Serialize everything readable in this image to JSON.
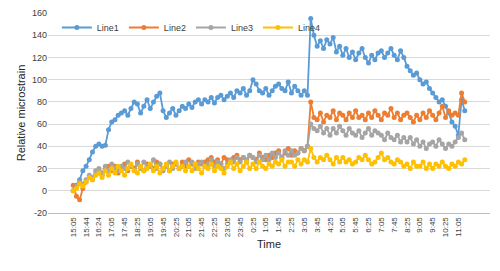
{
  "chart_data": {
    "type": "line",
    "x_label": "Time",
    "y_label": "Relative microstrain",
    "categories": [
      "15:05",
      null,
      null,
      null,
      "15:44",
      null,
      null,
      null,
      "16:24",
      null,
      null,
      null,
      "17:05",
      null,
      null,
      null,
      "17:45",
      null,
      null,
      null,
      "18:25",
      null,
      null,
      null,
      "19:05",
      null,
      null,
      null,
      "19:45",
      null,
      null,
      null,
      "20:25",
      null,
      null,
      null,
      "21:05",
      null,
      null,
      null,
      "21:45",
      null,
      null,
      null,
      "22:25",
      null,
      null,
      null,
      "23:05",
      null,
      null,
      null,
      "23:45",
      null,
      null,
      null,
      "0:25",
      null,
      null,
      null,
      "1:05",
      null,
      null,
      null,
      "1:45",
      null,
      null,
      null,
      "2:25",
      null,
      null,
      null,
      "3:05",
      null,
      null,
      null,
      "3:45",
      null,
      null,
      null,
      "4:25",
      null,
      null,
      null,
      "5:05",
      null,
      null,
      null,
      "5:45",
      null,
      null,
      null,
      "6:25",
      null,
      null,
      null,
      "7:05",
      null,
      null,
      null,
      "7:45",
      null,
      null,
      null,
      "8:25",
      null,
      null,
      null,
      "9:05",
      null,
      null,
      null,
      "9:45",
      null,
      null,
      null,
      "10:25",
      null,
      null,
      null,
      "11:05",
      null,
      null
    ],
    "series": [
      {
        "name": "Line1",
        "color": "#5B9BD5",
        "marker": "circle",
        "values": [
          0,
          5,
          10,
          18,
          22,
          28,
          35,
          40,
          42,
          40,
          41,
          55,
          62,
          64,
          68,
          70,
          72,
          68,
          74,
          80,
          78,
          70,
          76,
          82,
          74,
          80,
          85,
          88,
          72,
          66,
          70,
          74,
          68,
          72,
          76,
          74,
          78,
          75,
          80,
          82,
          78,
          82,
          80,
          84,
          79,
          84,
          86,
          82,
          85,
          88,
          84,
          90,
          88,
          92,
          86,
          90,
          100,
          96,
          90,
          88,
          92,
          86,
          90,
          94,
          96,
          92,
          90,
          98,
          88,
          94,
          90,
          86,
          90,
          86,
          155,
          140,
          130,
          135,
          128,
          136,
          132,
          138,
          125,
          130,
          122,
          128,
          120,
          125,
          118,
          124,
          128,
          120,
          115,
          122,
          118,
          124,
          126,
          120,
          124,
          128,
          122,
          118,
          126,
          120,
          112,
          108,
          104,
          106,
          100,
          96,
          98,
          92,
          88,
          84,
          80,
          82,
          76,
          70,
          62,
          58,
          50,
          82,
          72
        ]
      },
      {
        "name": "Line2",
        "color": "#ED7D31",
        "marker": "circle",
        "values": [
          5,
          -5,
          -8,
          2,
          8,
          12,
          10,
          15,
          18,
          14,
          20,
          22,
          18,
          22,
          16,
          20,
          24,
          18,
          22,
          20,
          26,
          20,
          18,
          24,
          22,
          20,
          26,
          24,
          20,
          22,
          18,
          24,
          24,
          20,
          26,
          22,
          28,
          24,
          22,
          26,
          24,
          26,
          28,
          30,
          26,
          28,
          24,
          30,
          28,
          26,
          30,
          32,
          28,
          30,
          26,
          32,
          30,
          28,
          34,
          30,
          28,
          32,
          30,
          34,
          36,
          30,
          34,
          38,
          32,
          36,
          34,
          38,
          36,
          40,
          80,
          66,
          64,
          70,
          62,
          68,
          66,
          72,
          64,
          70,
          68,
          64,
          70,
          66,
          72,
          66,
          68,
          64,
          70,
          66,
          72,
          68,
          64,
          70,
          68,
          74,
          66,
          70,
          64,
          68,
          70,
          66,
          62,
          68,
          64,
          70,
          66,
          72,
          68,
          64,
          70,
          76,
          66,
          72,
          68,
          70,
          68,
          88,
          80
        ]
      },
      {
        "name": "Line3",
        "color": "#A5A5A5",
        "marker": "circle",
        "values": [
          0,
          4,
          8,
          6,
          10,
          14,
          12,
          18,
          20,
          16,
          22,
          18,
          24,
          20,
          18,
          22,
          20,
          26,
          22,
          18,
          24,
          20,
          26,
          22,
          22,
          28,
          20,
          24,
          18,
          22,
          26,
          20,
          24,
          20,
          22,
          26,
          22,
          26,
          20,
          24,
          26,
          22,
          24,
          28,
          22,
          26,
          24,
          20,
          24,
          28,
          26,
          30,
          26,
          30,
          28,
          32,
          30,
          26,
          32,
          28,
          32,
          28,
          34,
          30,
          34,
          30,
          36,
          32,
          36,
          32,
          34,
          38,
          36,
          40,
          60,
          56,
          54,
          58,
          52,
          56,
          50,
          56,
          52,
          58,
          54,
          50,
          56,
          52,
          50,
          54,
          48,
          52,
          56,
          50,
          54,
          52,
          50,
          46,
          52,
          48,
          46,
          50,
          44,
          48,
          44,
          48,
          42,
          46,
          40,
          44,
          38,
          42,
          44,
          40,
          46,
          42,
          38,
          42,
          40,
          44,
          48,
          52,
          46
        ]
      },
      {
        "name": "Line4",
        "color": "#FFC000",
        "marker": "circle",
        "values": [
          0,
          2,
          6,
          4,
          8,
          12,
          10,
          14,
          16,
          12,
          18,
          14,
          20,
          16,
          22,
          18,
          14,
          20,
          24,
          18,
          16,
          22,
          18,
          20,
          24,
          18,
          22,
          16,
          20,
          24,
          18,
          22,
          26,
          20,
          22,
          18,
          22,
          18,
          24,
          20,
          16,
          22,
          20,
          24,
          18,
          22,
          20,
          16,
          22,
          26,
          20,
          24,
          18,
          22,
          26,
          20,
          24,
          20,
          26,
          22,
          20,
          24,
          22,
          26,
          24,
          28,
          22,
          26,
          26,
          22,
          28,
          24,
          28,
          26,
          38,
          30,
          26,
          30,
          28,
          32,
          28,
          24,
          30,
          26,
          30,
          26,
          28,
          24,
          26,
          30,
          28,
          32,
          28,
          24,
          26,
          30,
          34,
          28,
          30,
          26,
          24,
          28,
          26,
          22,
          24,
          20,
          26,
          22,
          22,
          26,
          20,
          24,
          20,
          24,
          22,
          26,
          22,
          20,
          24,
          22,
          26,
          24,
          28
        ]
      }
    ],
    "ylim": [
      -20,
      160
    ],
    "yticks": [
      -20,
      0,
      20,
      40,
      60,
      80,
      100,
      120,
      140,
      160
    ],
    "grid": true,
    "legend": "upper left"
  }
}
